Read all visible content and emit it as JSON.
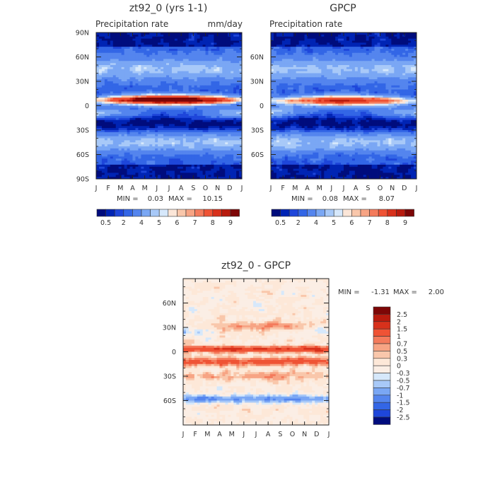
{
  "chart_data": [
    {
      "type": "heatmap",
      "title": "zt92_0 (yrs 1-1)",
      "subtitle_left": "Precipitation rate",
      "subtitle_right": "mm/day",
      "x_ticks": [
        "J",
        "F",
        "M",
        "A",
        "M",
        "J",
        "J",
        "A",
        "S",
        "O",
        "N",
        "D",
        "J"
      ],
      "y_ticks": [
        "90N",
        "60N",
        "30N",
        "0",
        "30S",
        "60S",
        "90S"
      ],
      "ylim": [
        -90,
        90
      ],
      "min_label": "MIN =",
      "min": "0.03",
      "max_label": "MAX =",
      "max": "10.15",
      "field": "itcz",
      "itcz_peak_lat": 7,
      "itcz_peak_value": 10.15,
      "secondary_band_lat": -9
    },
    {
      "type": "heatmap",
      "title": "GPCP",
      "subtitle_left": "Precipitation rate",
      "subtitle_right": "",
      "x_ticks": [
        "J",
        "F",
        "M",
        "A",
        "M",
        "J",
        "J",
        "A",
        "S",
        "O",
        "N",
        "D",
        "J"
      ],
      "y_ticks": [
        "60N",
        "30N",
        "0",
        "30S",
        "60S"
      ],
      "ylim": [
        -90,
        90
      ],
      "min_label": "MIN =",
      "min": "0.08",
      "max_label": "MAX =",
      "max": "8.07",
      "field": "itcz",
      "itcz_peak_lat": 6,
      "itcz_peak_value": 8.07,
      "secondary_band_lat": -8
    },
    {
      "type": "heatmap",
      "title": "zt92_0 - GPCP",
      "x_ticks": [
        "J",
        "F",
        "M",
        "A",
        "M",
        "J",
        "J",
        "A",
        "S",
        "O",
        "N",
        "D",
        "J"
      ],
      "y_ticks": [
        "60N",
        "30N",
        "0",
        "30S",
        "60S"
      ],
      "ylim": [
        -90,
        90
      ],
      "min_label": "MIN =",
      "min": "-1.31",
      "max_label": "MAX =",
      "max": "2.00",
      "field": "difference"
    }
  ],
  "colorbar_precip": {
    "labels": [
      "0.5",
      "2",
      "4",
      "5",
      "6",
      "7",
      "8",
      "9"
    ],
    "colors": [
      "#000c7d",
      "#0024b4",
      "#1e46da",
      "#3366e6",
      "#5485ee",
      "#7aa7f4",
      "#a8c9f8",
      "#d6e8fb",
      "#fbe6d8",
      "#f9c7ab",
      "#f7a484",
      "#f47b5c",
      "#ef5335",
      "#d8311b",
      "#b81b0e",
      "#7d0606"
    ]
  },
  "colorbar_diff": {
    "labels": [
      "2.5",
      "2",
      "1.5",
      "1",
      "0.7",
      "0.5",
      "0.3",
      "0",
      "-0.3",
      "-0.5",
      "-0.7",
      "-1",
      "-1.5",
      "-2",
      "-2.5"
    ],
    "colors": [
      "#7d0606",
      "#b81b0e",
      "#d8311b",
      "#ef5335",
      "#f47b5c",
      "#f7a484",
      "#f9c7ab",
      "#fde8d8",
      "#fbeee5",
      "#d6e8fb",
      "#a8c9f8",
      "#7aa7f4",
      "#5485ee",
      "#3366e6",
      "#1e46da",
      "#000c7d"
    ]
  }
}
